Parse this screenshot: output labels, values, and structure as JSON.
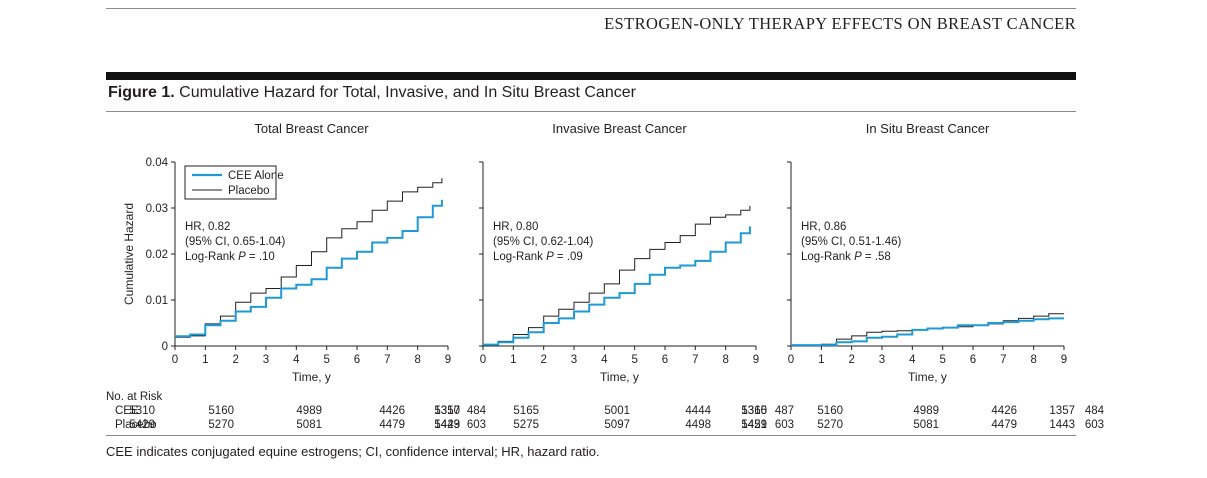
{
  "running_head": "ESTROGEN-ONLY THERAPY EFFECTS ON BREAST CANCER",
  "figure": {
    "label": "Figure 1.",
    "title": "Cumulative Hazard for Total, Invasive, and In Situ Breast Cancer"
  },
  "footnote": "CEE indicates conjugated equine estrogens; CI, confidence interval; HR, hazard ratio.",
  "risk_table": {
    "heading": "No. at Risk",
    "rows": [
      "CEE",
      "Placebo"
    ]
  },
  "colors": {
    "cee": "#1f9ad6",
    "placebo": "#231f20"
  },
  "chart_data": [
    {
      "type": "line",
      "title": "Total Breast Cancer",
      "xlabel": "Time, y",
      "ylabel": "Cumulative Hazard",
      "xlim": [
        0,
        9
      ],
      "ylim": [
        0,
        0.04
      ],
      "xticks": [
        "0",
        "1",
        "2",
        "3",
        "4",
        "5",
        "6",
        "7",
        "8",
        "9"
      ],
      "yticks": [
        "0",
        "0.01",
        "0.02",
        "0.03",
        "0.04"
      ],
      "legend": [
        "CEE Alone",
        "Placebo"
      ],
      "legend_position": "top-left",
      "annotation": [
        "HR, 0.82",
        "(95% CI, 0.65-1.04)",
        "Log-Rank P = .10"
      ],
      "series": [
        {
          "name": "CEE Alone",
          "x": [
            0,
            0.5,
            1.0,
            1.5,
            2.0,
            2.5,
            3.0,
            3.5,
            4.0,
            4.5,
            5.0,
            5.5,
            6.0,
            6.5,
            7.0,
            7.5,
            8.0,
            8.5,
            8.8
          ],
          "y": [
            0.0021,
            0.0025,
            0.0045,
            0.0055,
            0.0075,
            0.0085,
            0.0105,
            0.0125,
            0.0133,
            0.0145,
            0.017,
            0.019,
            0.0205,
            0.0225,
            0.0235,
            0.025,
            0.028,
            0.0305,
            0.0318
          ]
        },
        {
          "name": "Placebo",
          "x": [
            0,
            0.5,
            1.0,
            1.5,
            2.0,
            2.5,
            3.0,
            3.5,
            4.0,
            4.5,
            5.0,
            5.5,
            6.0,
            6.5,
            7.0,
            7.5,
            8.0,
            8.5,
            8.8
          ],
          "y": [
            0.0019,
            0.0022,
            0.0048,
            0.0065,
            0.0095,
            0.0115,
            0.0125,
            0.015,
            0.0175,
            0.0205,
            0.0235,
            0.0255,
            0.027,
            0.0295,
            0.0315,
            0.0335,
            0.0345,
            0.0355,
            0.0365
          ]
        }
      ],
      "at_risk": {
        "CEE": [
          "5310",
          "5160",
          "4989",
          "4426",
          "1357",
          "484"
        ],
        "Placebo": [
          "5429",
          "5270",
          "5081",
          "4479",
          "1443",
          "603"
        ]
      }
    },
    {
      "type": "line",
      "title": "Invasive Breast Cancer",
      "xlabel": "Time, y",
      "xlim": [
        0,
        9
      ],
      "ylim": [
        0,
        0.04
      ],
      "xticks": [
        "0",
        "1",
        "2",
        "3",
        "4",
        "5",
        "6",
        "7",
        "8",
        "9"
      ],
      "annotation": [
        "HR, 0.80",
        "(95% CI, 0.62-1.04)",
        "Log-Rank P = .09"
      ],
      "series": [
        {
          "name": "CEE Alone",
          "x": [
            0,
            0.5,
            1.0,
            1.5,
            2.0,
            2.5,
            3.0,
            3.5,
            4.0,
            4.5,
            5.0,
            5.5,
            6.0,
            6.5,
            7.0,
            7.5,
            8.0,
            8.5,
            8.8
          ],
          "y": [
            0.0003,
            0.0008,
            0.0018,
            0.003,
            0.005,
            0.006,
            0.0075,
            0.009,
            0.0105,
            0.0115,
            0.0135,
            0.0155,
            0.017,
            0.0175,
            0.0185,
            0.0205,
            0.0225,
            0.0245,
            0.026
          ]
        },
        {
          "name": "Placebo",
          "x": [
            0,
            0.5,
            1.0,
            1.5,
            2.0,
            2.5,
            3.0,
            3.5,
            4.0,
            4.5,
            5.0,
            5.5,
            6.0,
            6.5,
            7.0,
            7.5,
            8.0,
            8.5,
            8.8
          ],
          "y": [
            0.0003,
            0.001,
            0.0025,
            0.004,
            0.0065,
            0.008,
            0.0095,
            0.0115,
            0.0135,
            0.0165,
            0.019,
            0.021,
            0.0225,
            0.024,
            0.0265,
            0.028,
            0.0285,
            0.0295,
            0.0305
          ]
        }
      ],
      "at_risk": {
        "CEE": [
          "5310",
          "5165",
          "5001",
          "4444",
          "1365",
          "487"
        ],
        "Placebo": [
          "5429",
          "5275",
          "5097",
          "4498",
          "1451",
          "603"
        ]
      }
    },
    {
      "type": "line",
      "title": "In Situ Breast Cancer",
      "xlabel": "Time, y",
      "xlim": [
        0,
        9
      ],
      "ylim": [
        0,
        0.04
      ],
      "xticks": [
        "0",
        "1",
        "2",
        "3",
        "4",
        "5",
        "6",
        "7",
        "8",
        "9"
      ],
      "annotation": [
        "HR, 0.86",
        "(95% CI, 0.51-1.46)",
        "Log-Rank P = .58"
      ],
      "series": [
        {
          "name": "CEE Alone",
          "x": [
            0,
            1.0,
            1.5,
            2.0,
            2.5,
            3.0,
            3.5,
            4.0,
            4.5,
            5.0,
            5.5,
            6.0,
            6.5,
            7.0,
            7.5,
            8.0,
            8.5,
            9.0
          ],
          "y": [
            0.0002,
            0.0002,
            0.0008,
            0.001,
            0.0018,
            0.002,
            0.0025,
            0.0035,
            0.0038,
            0.004,
            0.0045,
            0.0045,
            0.005,
            0.0052,
            0.0055,
            0.0058,
            0.006,
            0.006
          ]
        },
        {
          "name": "Placebo",
          "x": [
            0,
            1.0,
            1.5,
            2.0,
            2.5,
            3.0,
            3.5,
            4.0,
            4.5,
            5.0,
            5.5,
            6.0,
            6.5,
            7.0,
            7.5,
            8.0,
            8.5,
            9.0
          ],
          "y": [
            0.0002,
            0.0004,
            0.0015,
            0.0022,
            0.003,
            0.0032,
            0.0033,
            0.0035,
            0.0038,
            0.004,
            0.0042,
            0.0045,
            0.0048,
            0.0055,
            0.006,
            0.0065,
            0.007,
            0.007
          ]
        }
      ],
      "at_risk": {
        "CEE": [
          "5310",
          "5160",
          "4989",
          "4426",
          "1357",
          "484"
        ],
        "Placebo": [
          "5429",
          "5270",
          "5081",
          "4479",
          "1443",
          "603"
        ]
      }
    }
  ]
}
